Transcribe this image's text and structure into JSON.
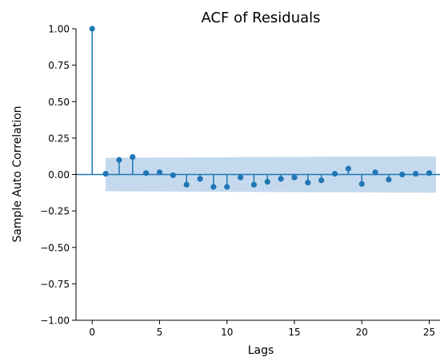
{
  "chart_data": {
    "type": "stem",
    "title": "ACF of Residuals",
    "xlabel": "Lags",
    "ylabel": "Sample Auto Correlation",
    "xlim": [
      -1.2,
      25.8
    ],
    "ylim": [
      -1.0,
      1.0
    ],
    "x_ticks": [
      0,
      5,
      10,
      15,
      20,
      25
    ],
    "y_ticks": [
      -1.0,
      -0.75,
      -0.5,
      -0.25,
      0.0,
      0.25,
      0.5,
      0.75,
      1.0
    ],
    "x_tick_labels": [
      "0",
      "5",
      "10",
      "15",
      "20",
      "25"
    ],
    "y_tick_labels": [
      "−1.00",
      "−0.75",
      "−0.50",
      "−0.25",
      "0.00",
      "0.25",
      "0.50",
      "0.75",
      "1.00"
    ],
    "lags": [
      0,
      1,
      2,
      3,
      4,
      5,
      6,
      7,
      8,
      9,
      10,
      11,
      12,
      13,
      14,
      15,
      16,
      17,
      18,
      19,
      20,
      21,
      22,
      23,
      24,
      25
    ],
    "values": [
      1.0,
      0.005,
      0.1,
      0.12,
      0.01,
      0.015,
      -0.005,
      -0.07,
      -0.03,
      -0.085,
      -0.085,
      -0.02,
      -0.07,
      -0.05,
      -0.03,
      -0.02,
      -0.055,
      -0.04,
      0.005,
      0.04,
      -0.065,
      0.015,
      -0.035,
      0.0,
      0.005,
      0.01
    ],
    "confidence_band": {
      "lags": [
        1,
        25.5
      ],
      "upper": [
        0.115,
        0.125
      ],
      "lower": [
        -0.115,
        -0.125
      ]
    },
    "colors": {
      "stem": "#1f77b4",
      "band": "#c5d9ee",
      "zero_line": "#1f77b4",
      "axis": "#000000"
    }
  }
}
